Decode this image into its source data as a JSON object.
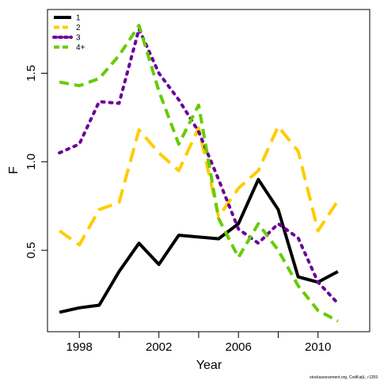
{
  "chart_data": {
    "type": "line",
    "xlabel": "Year",
    "ylabel": "F",
    "xlim": [
      1996.4,
      2012.6
    ],
    "ylim": [
      0.04,
      1.86
    ],
    "x_ticks": [
      1998,
      2002,
      2006,
      2010
    ],
    "x_minor_ticks": [
      1998,
      2000,
      2002,
      2004,
      2006,
      2008,
      2010
    ],
    "y_ticks": [
      0.5,
      1.0,
      1.5
    ],
    "x": [
      1997,
      1998,
      1999,
      2000,
      2001,
      2002,
      2003,
      2004,
      2005,
      2006,
      2007,
      2008,
      2009,
      2010,
      2011
    ],
    "series": [
      {
        "name": "1",
        "color": "#000000",
        "dash": "solid",
        "values": [
          0.15,
          0.175,
          0.19,
          0.38,
          0.54,
          0.42,
          0.585,
          0.575,
          0.565,
          0.65,
          0.9,
          0.73,
          0.35,
          0.32,
          0.38
        ]
      },
      {
        "name": "2",
        "color": "#FFCC00",
        "dash": "long",
        "values": [
          0.61,
          0.53,
          0.73,
          0.77,
          1.18,
          1.05,
          0.95,
          1.19,
          0.69,
          0.85,
          0.95,
          1.2,
          1.06,
          0.61,
          0.78
        ]
      },
      {
        "name": "3",
        "color": "#6A0099",
        "dash": "dotted",
        "values": [
          1.05,
          1.1,
          1.34,
          1.33,
          1.75,
          1.5,
          1.35,
          1.17,
          0.9,
          0.62,
          0.54,
          0.65,
          0.57,
          0.32,
          0.2
        ]
      },
      {
        "name": "4+",
        "color": "#66CC00",
        "dash": "dashed",
        "values": [
          1.45,
          1.43,
          1.47,
          1.6,
          1.77,
          1.4,
          1.1,
          1.32,
          0.68,
          0.46,
          0.65,
          0.5,
          0.3,
          0.16,
          0.1
        ]
      }
    ],
    "legend_position": "top-left",
    "grid": false,
    "footnote": "stockassessment.org, CodKatjL, r1359"
  }
}
